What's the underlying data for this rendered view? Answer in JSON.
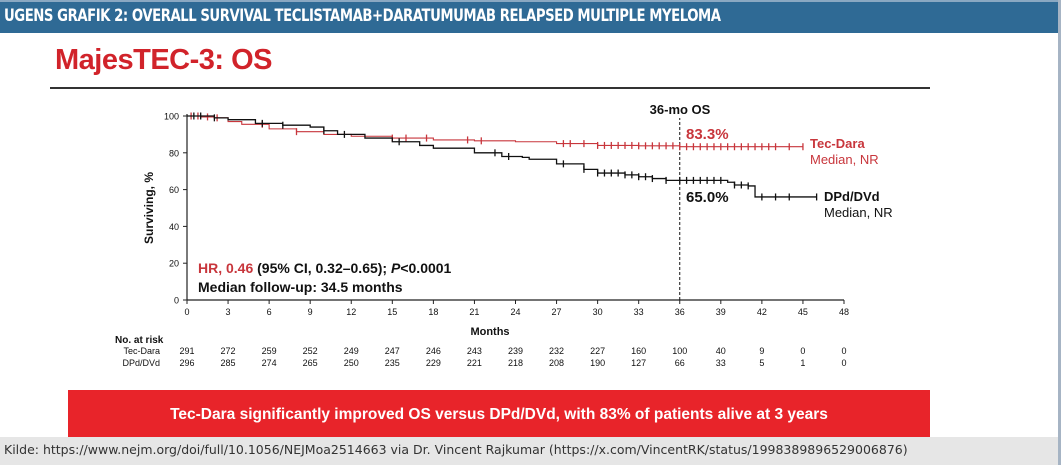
{
  "header": {
    "title": "UGENS GRAFIK 2: OVERALL SURVIVAL TECLISTAMAB+DARATUMUMAB RELAPSED MULTIPLE MYELOMA"
  },
  "slide": {
    "title": "MajesTEC-3: OS"
  },
  "banner": {
    "text": "Tec-Dara significantly improved OS versus DPd/DVd, with 83% of patients alive at 3 years",
    "color": "#e8242a"
  },
  "footer": {
    "text": "Kilde:  https://www.nejm.org/doi/full/10.1056/NEJMoa2514663 via Dr. Vincent Rajkumar (https://x.com/VincentRK/status/1998389896529006876)"
  },
  "colors": {
    "header_bg": "#2f6a95",
    "title_red": "#d1232a",
    "tec_dara": "#c8363c",
    "dpd": "#111111"
  },
  "chart_data": {
    "type": "line",
    "subtype": "kaplan-meier",
    "title": "MajesTEC-3: OS",
    "xlabel": "Months",
    "ylabel": "Surviving, %",
    "xlim": [
      0,
      48
    ],
    "ylim": [
      0,
      100
    ],
    "x_ticks": [
      0,
      3,
      6,
      9,
      12,
      15,
      18,
      21,
      24,
      27,
      30,
      33,
      36,
      39,
      42,
      45,
      48
    ],
    "y_ticks": [
      0,
      20,
      40,
      60,
      80,
      100
    ],
    "grid": false,
    "reference_line": {
      "x": 36,
      "label": "36-mo OS",
      "style": "dashed"
    },
    "series": [
      {
        "name": "Tec-Dara",
        "legend_label": "Tec-Dara",
        "legend_sublabel": "Median, NR",
        "color": "#c8363c",
        "annotation": "83.3%",
        "points": [
          [
            0,
            100
          ],
          [
            1,
            99.5
          ],
          [
            2,
            99
          ],
          [
            3,
            97
          ],
          [
            4,
            95.5
          ],
          [
            6,
            93
          ],
          [
            8,
            91.5
          ],
          [
            10,
            90
          ],
          [
            12,
            89
          ],
          [
            15,
            88
          ],
          [
            18,
            87
          ],
          [
            21,
            86.5
          ],
          [
            24,
            86
          ],
          [
            27,
            85
          ],
          [
            30,
            84
          ],
          [
            33,
            83.8
          ],
          [
            36,
            83.3
          ],
          [
            42,
            83.3
          ],
          [
            45,
            83.3
          ]
        ],
        "censor_marks": [
          0.3,
          0.8,
          1.5,
          2.2,
          5.5,
          8,
          15,
          16,
          17.5,
          20.5,
          21.5,
          27.5,
          28,
          29,
          30,
          30.5,
          31,
          31.5,
          32,
          32.5,
          33,
          33.5,
          34,
          34.5,
          35,
          35.5,
          36,
          36.5,
          37,
          37.5,
          38,
          38.5,
          39,
          39.5,
          40,
          40.5,
          41,
          41.5,
          42,
          42.5,
          43,
          44,
          45
        ]
      },
      {
        "name": "DPd/DVd",
        "legend_label": "DPd/DVd",
        "legend_sublabel": "Median, NR",
        "color": "#111111",
        "annotation": "65.0%",
        "points": [
          [
            0,
            100
          ],
          [
            2,
            99
          ],
          [
            3,
            98
          ],
          [
            5,
            96
          ],
          [
            7,
            95
          ],
          [
            9,
            94
          ],
          [
            10,
            92
          ],
          [
            11,
            90
          ],
          [
            13,
            88
          ],
          [
            15,
            86
          ],
          [
            17,
            84
          ],
          [
            18,
            82.5
          ],
          [
            21,
            80
          ],
          [
            23,
            78
          ],
          [
            24.5,
            77.5
          ],
          [
            25,
            76.5
          ],
          [
            27,
            74
          ],
          [
            29,
            71
          ],
          [
            30,
            69
          ],
          [
            32,
            68
          ],
          [
            33,
            67
          ],
          [
            34,
            66
          ],
          [
            35,
            65
          ],
          [
            38,
            65
          ],
          [
            39.5,
            64
          ],
          [
            40,
            62.5
          ],
          [
            41,
            62
          ],
          [
            41.5,
            62
          ],
          [
            41.5,
            56
          ],
          [
            45,
            56
          ],
          [
            46,
            56
          ]
        ],
        "censor_marks": [
          0.5,
          1,
          2,
          5.5,
          7,
          10,
          11.5,
          15.5,
          22.5,
          23.5,
          27.5,
          29,
          30,
          30.5,
          31,
          31.5,
          32,
          32.5,
          33,
          33.5,
          34,
          35,
          36,
          36.5,
          37,
          37.5,
          38,
          38.5,
          39,
          40,
          40.5,
          41,
          42,
          43,
          44,
          46
        ]
      }
    ],
    "text_annotations": [
      {
        "text_red": "HR, 0.46",
        "text_black": " (95% CI, 0.32–0.65); ",
        "text_italic": "P",
        "text_tail": "<0.0001"
      },
      {
        "text": "Median follow-up: 34.5 months"
      }
    ],
    "risk_table": {
      "title": "No. at risk",
      "times": [
        0,
        3,
        6,
        9,
        12,
        15,
        18,
        21,
        24,
        27,
        30,
        33,
        36,
        39,
        42,
        45,
        48
      ],
      "rows": [
        {
          "label": "Tec-Dara",
          "values": [
            291,
            272,
            259,
            252,
            249,
            247,
            246,
            243,
            239,
            232,
            227,
            160,
            100,
            40,
            9,
            0,
            0
          ]
        },
        {
          "label": "DPd/DVd",
          "values": [
            296,
            285,
            274,
            265,
            250,
            235,
            229,
            221,
            218,
            208,
            190,
            127,
            66,
            33,
            5,
            1,
            0
          ]
        }
      ]
    }
  }
}
